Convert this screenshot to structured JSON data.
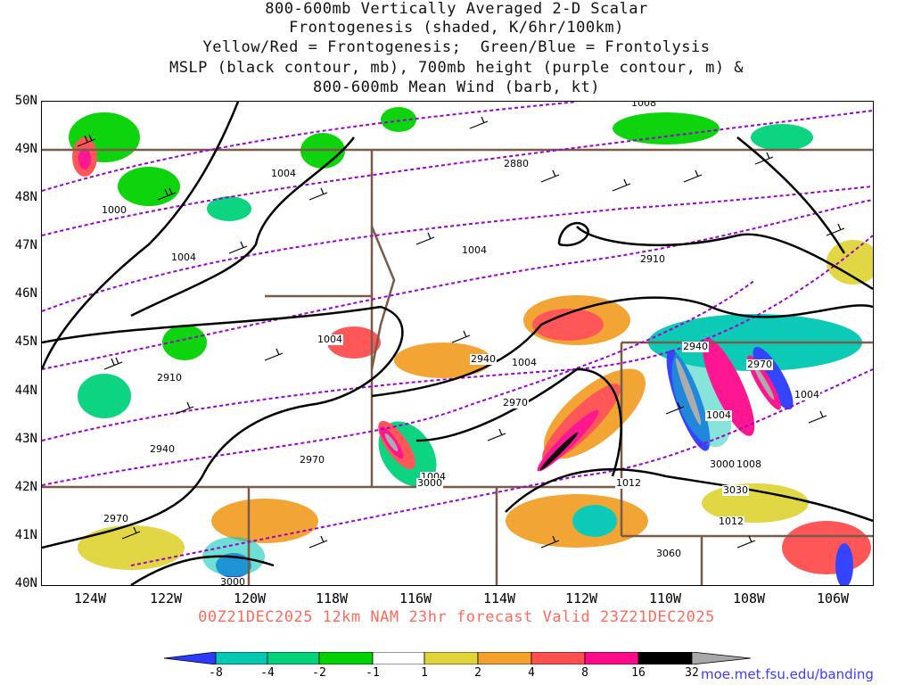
{
  "title_lines": [
    "800-600mb Vertically Averaged 2-D Scalar",
    "Frontogenesis (shaded, K/6hr/100km)",
    "Yellow/Red = Frontogenesis;  Green/Blue = Frontolysis",
    "MSLP (black contour, mb), 700mb height (purple contour, m) &",
    "800-600mb Mean Wind (barb, kt)"
  ],
  "axes": {
    "lat_labels": [
      "50N",
      "49N",
      "48N",
      "47N",
      "46N",
      "45N",
      "44N",
      "43N",
      "42N",
      "41N",
      "40N"
    ],
    "lon_labels": [
      "124W",
      "122W",
      "120W",
      "118W",
      "116W",
      "114W",
      "112W",
      "110W",
      "108W",
      "106W"
    ]
  },
  "valid_text": "00Z21DEC2025 12km NAM 23hr forecast Valid 23Z21DEC2025",
  "colorbar": {
    "labels": [
      "-8",
      "-4",
      "-2",
      "-1",
      "1",
      "2",
      "4",
      "8",
      "16",
      "32"
    ],
    "colors": [
      "#2b3bff",
      "#00c8b4",
      "#00d27a",
      "#00d200",
      "#ffffff",
      "#e0d43a",
      "#f2a12a",
      "#ff4f4f",
      "#ff0a8c",
      "#000000",
      "#a8a8a8"
    ]
  },
  "contour_labels": {
    "mslp": [
      "1008",
      "1004",
      "1000",
      "1004",
      "1004",
      "1004",
      "1004",
      "1004",
      "1004",
      "1004",
      "1008",
      "1012",
      "1012"
    ],
    "height": [
      "2880",
      "2910",
      "2910",
      "2940",
      "2940",
      "2970",
      "2970",
      "2970",
      "2940",
      "3000",
      "3030",
      "3060",
      "2970",
      "3000",
      "3000"
    ]
  },
  "source": "moe.met.fsu.edu/banding"
}
